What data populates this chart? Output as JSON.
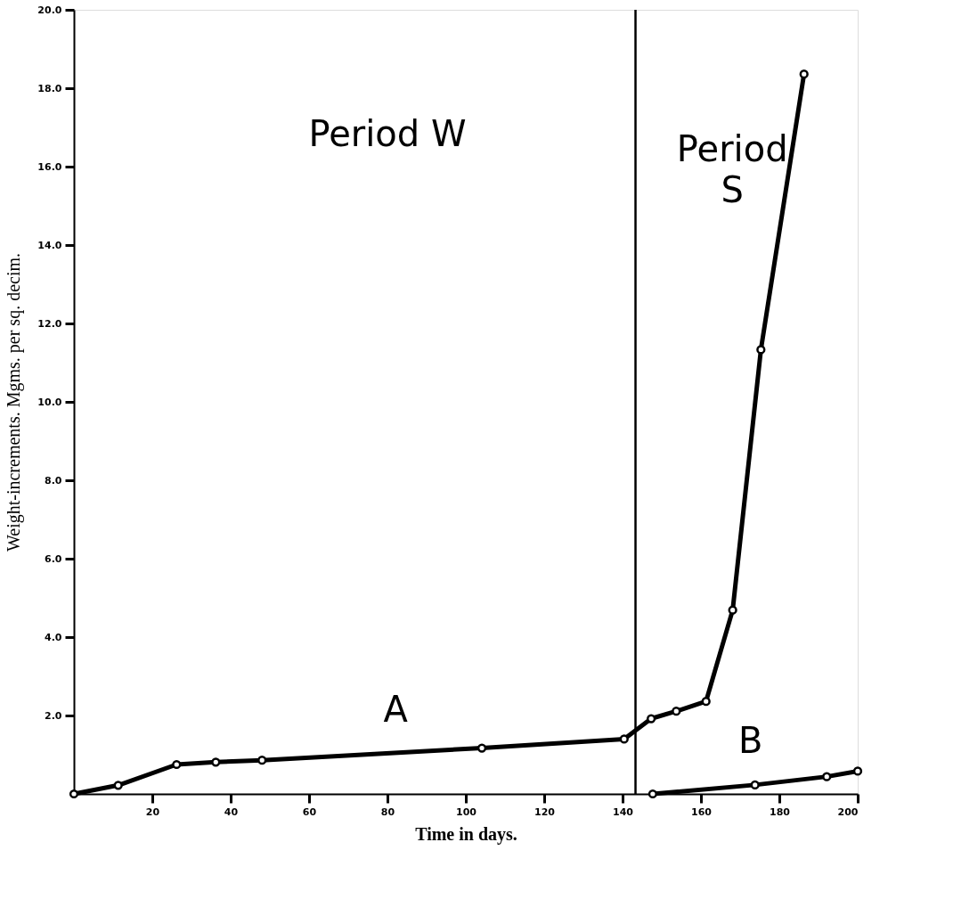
{
  "chart_data": {
    "type": "line",
    "xlabel": "Time in days.",
    "ylabel": "Weight-increments.    Mgms. per sq. decim.",
    "xlim": [
      0,
      200
    ],
    "ylim": [
      0,
      20
    ],
    "xticks": [
      20,
      40,
      60,
      80,
      100,
      120,
      140,
      160,
      180,
      200
    ],
    "yticks": [
      {
        "value": 2,
        "label": "2.0"
      },
      {
        "value": 4,
        "label": "4.0"
      },
      {
        "value": 6,
        "label": "6.0"
      },
      {
        "value": 8,
        "label": "8.0"
      },
      {
        "value": 10,
        "label": "10.0"
      },
      {
        "value": 12,
        "label": "12.0"
      },
      {
        "value": 14,
        "label": "14.0"
      },
      {
        "value": 16,
        "label": "16.0"
      },
      {
        "value": 18,
        "label": "18.0"
      },
      {
        "value": 20,
        "label": "20.0"
      }
    ],
    "series": [
      {
        "name": "A",
        "color": "#000000",
        "x": [
          0,
          11.3,
          26.2,
          36.2,
          48,
          104.1,
          140.4,
          147.3,
          153.7,
          161.3,
          168.1,
          175.3,
          186.3
        ],
        "values": [
          0,
          0.22,
          0.75,
          0.81,
          0.86,
          1.17,
          1.4,
          1.92,
          2.11,
          2.36,
          4.69,
          11.33,
          18.36
        ]
      },
      {
        "name": "B",
        "color": "#000000",
        "x": [
          147.7,
          173.8,
          192.1,
          200
        ],
        "values": [
          0,
          0.23,
          0.44,
          0.58
        ]
      }
    ],
    "marker": "circle",
    "line_style": "solid",
    "grid": false,
    "ref_lines": [
      {
        "axis": "x",
        "value": 143.3,
        "color": "#000000"
      }
    ],
    "annotations": [
      "Period W",
      "Period\nS"
    ]
  }
}
